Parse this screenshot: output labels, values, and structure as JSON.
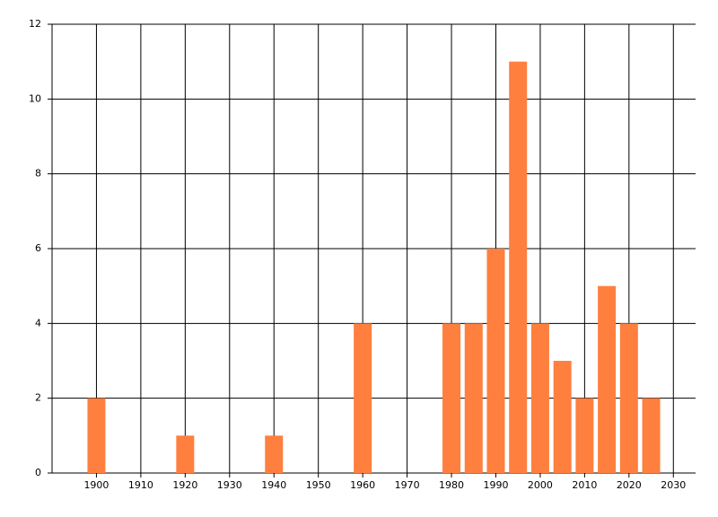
{
  "chart_data": {
    "type": "bar",
    "x": [
      1900,
      1920,
      1940,
      1960,
      1980,
      1985,
      1990,
      1995,
      2000,
      2005,
      2010,
      2015,
      2020,
      2025
    ],
    "values": [
      2,
      1,
      1,
      4,
      4,
      4,
      6,
      11,
      4,
      3,
      2,
      5,
      4,
      2
    ],
    "color": "#ff7f3f",
    "xlim": [
      1890,
      2035
    ],
    "xticks": [
      1900,
      1910,
      1920,
      1930,
      1940,
      1950,
      1960,
      1970,
      1980,
      1990,
      2000,
      2010,
      2020,
      2030
    ],
    "ylim": [
      0,
      12
    ],
    "yticks": [
      0,
      2,
      4,
      6,
      8,
      10,
      12
    ],
    "grid": true
  }
}
